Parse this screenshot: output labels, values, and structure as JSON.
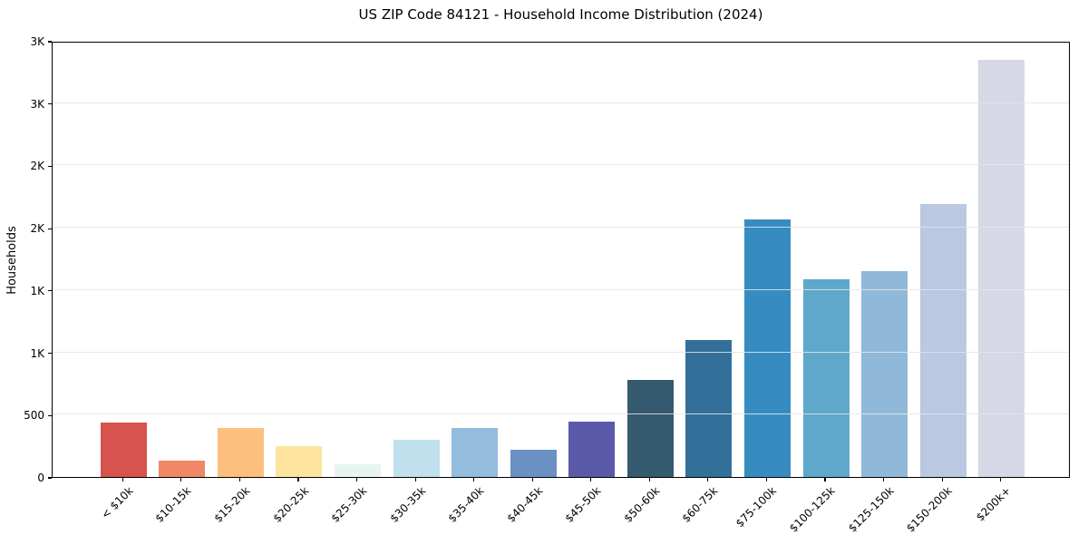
{
  "chart_data": {
    "type": "bar",
    "title": "US ZIP Code 84121 - Household Income Distribution (2024)",
    "xlabel": "",
    "ylabel": "Households",
    "categories": [
      "< $10k",
      "$10-15k",
      "$15-20k",
      "$20-25k",
      "$25-30k",
      "$30-35k",
      "$35-40k",
      "$40-45k",
      "$45-50k",
      "$50-60k",
      "$60-75k",
      "$75-100k",
      "$100-125k",
      "$125-150k",
      "$150-200k",
      "$200k+"
    ],
    "values": [
      440,
      130,
      390,
      250,
      105,
      300,
      395,
      220,
      445,
      780,
      1100,
      2065,
      1590,
      1655,
      2190,
      3345
    ],
    "bar_colors": [
      "#d6534e",
      "#f08766",
      "#fcbf7d",
      "#fde49e",
      "#e8f4f2",
      "#bfe0ec",
      "#93bcdd",
      "#6b90c4",
      "#5b5aaa",
      "#35596e",
      "#327099",
      "#368cc0",
      "#5ea8cb",
      "#90b9d9",
      "#bac8e1",
      "#d7d8e6"
    ],
    "ylim": [
      0,
      3500
    ],
    "ytick_values": [
      0,
      500,
      1000,
      1500,
      2000,
      2500,
      3000,
      3500
    ],
    "ytick_labels": [
      "0",
      "500",
      "1K",
      "1K",
      "2K",
      "2K",
      "3K",
      "3K"
    ],
    "grid": "horizontal",
    "gridline_color": "#e5e5e5",
    "spine_color": "#000000",
    "background_color": "#ffffff",
    "legend": "none"
  }
}
